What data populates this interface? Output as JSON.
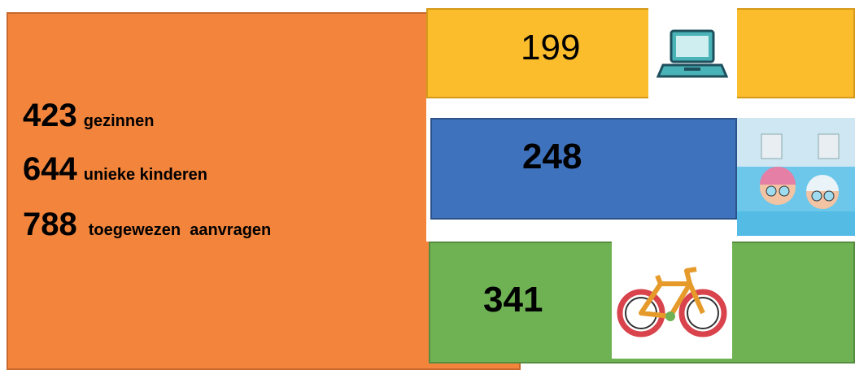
{
  "summary": [
    {
      "number": 423,
      "label": "gezinnen"
    },
    {
      "number": 644,
      "label": "unieke kinderen"
    },
    {
      "number": 788,
      "label": "toegewezen  aanvragen"
    }
  ],
  "tiles": [
    {
      "number": 199
    },
    {
      "number": 248
    },
    {
      "number": 341
    }
  ]
}
